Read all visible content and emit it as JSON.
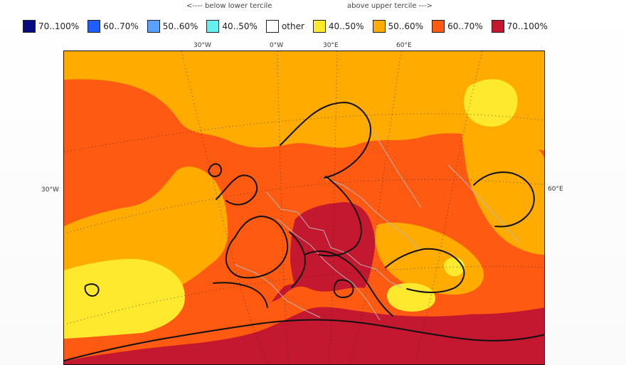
{
  "header": {
    "below_label": "<---- below lower tercile",
    "above_label": "above upper tercile --->"
  },
  "legend": [
    {
      "label": "70..100%",
      "color": "#0a0a80"
    },
    {
      "label": "60..70%",
      "color": "#1e5eff"
    },
    {
      "label": "50..60%",
      "color": "#5aa0ff"
    },
    {
      "label": "40..50%",
      "color": "#66f0f0"
    },
    {
      "label": "other",
      "color": "#ffffff"
    },
    {
      "label": "40..50%",
      "color": "#ffe92e"
    },
    {
      "label": "50..60%",
      "color": "#ffab00"
    },
    {
      "label": "60..70%",
      "color": "#ff5a12"
    },
    {
      "label": "70..100%",
      "color": "#c41730"
    }
  ],
  "map": {
    "lon_labels_top": [
      "30°W",
      "0°W",
      "30°E",
      "60°E"
    ],
    "lat_labels_side": [
      "30°W",
      "60°E"
    ],
    "icons": [
      "land-coastlines",
      "graticule"
    ]
  }
}
